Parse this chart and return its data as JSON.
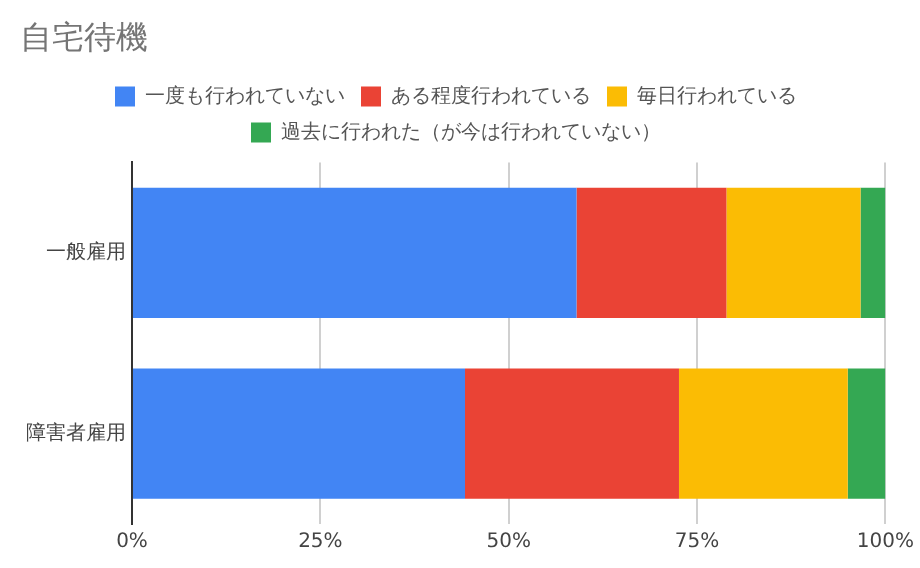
{
  "chart_data": {
    "type": "bar",
    "title": "自宅待機",
    "orientation": "horizontal",
    "stacked": true,
    "categories": [
      "一般雇用",
      "障害者雇用"
    ],
    "series": [
      {
        "name": "一度も行われていない",
        "color": "#4285f4",
        "values": [
          59.0,
          44.2
        ]
      },
      {
        "name": "ある程度行われている",
        "color": "#ea4335",
        "values": [
          19.9,
          28.4
        ]
      },
      {
        "name": "毎日行われている",
        "color": "#fbbc04",
        "values": [
          17.8,
          22.4
        ]
      },
      {
        "name": "過去に行われた（が今は行われていない）",
        "color": "#34a853",
        "values": [
          3.3,
          5.0
        ]
      }
    ],
    "xlim": [
      0,
      100
    ],
    "xticks": [
      {
        "value": 0,
        "label": "0%"
      },
      {
        "value": 25,
        "label": "25%"
      },
      {
        "value": 50,
        "label": "50%"
      },
      {
        "value": 75,
        "label": "75%"
      },
      {
        "value": 100,
        "label": "100%"
      }
    ],
    "grid": "x",
    "legend": "top"
  }
}
